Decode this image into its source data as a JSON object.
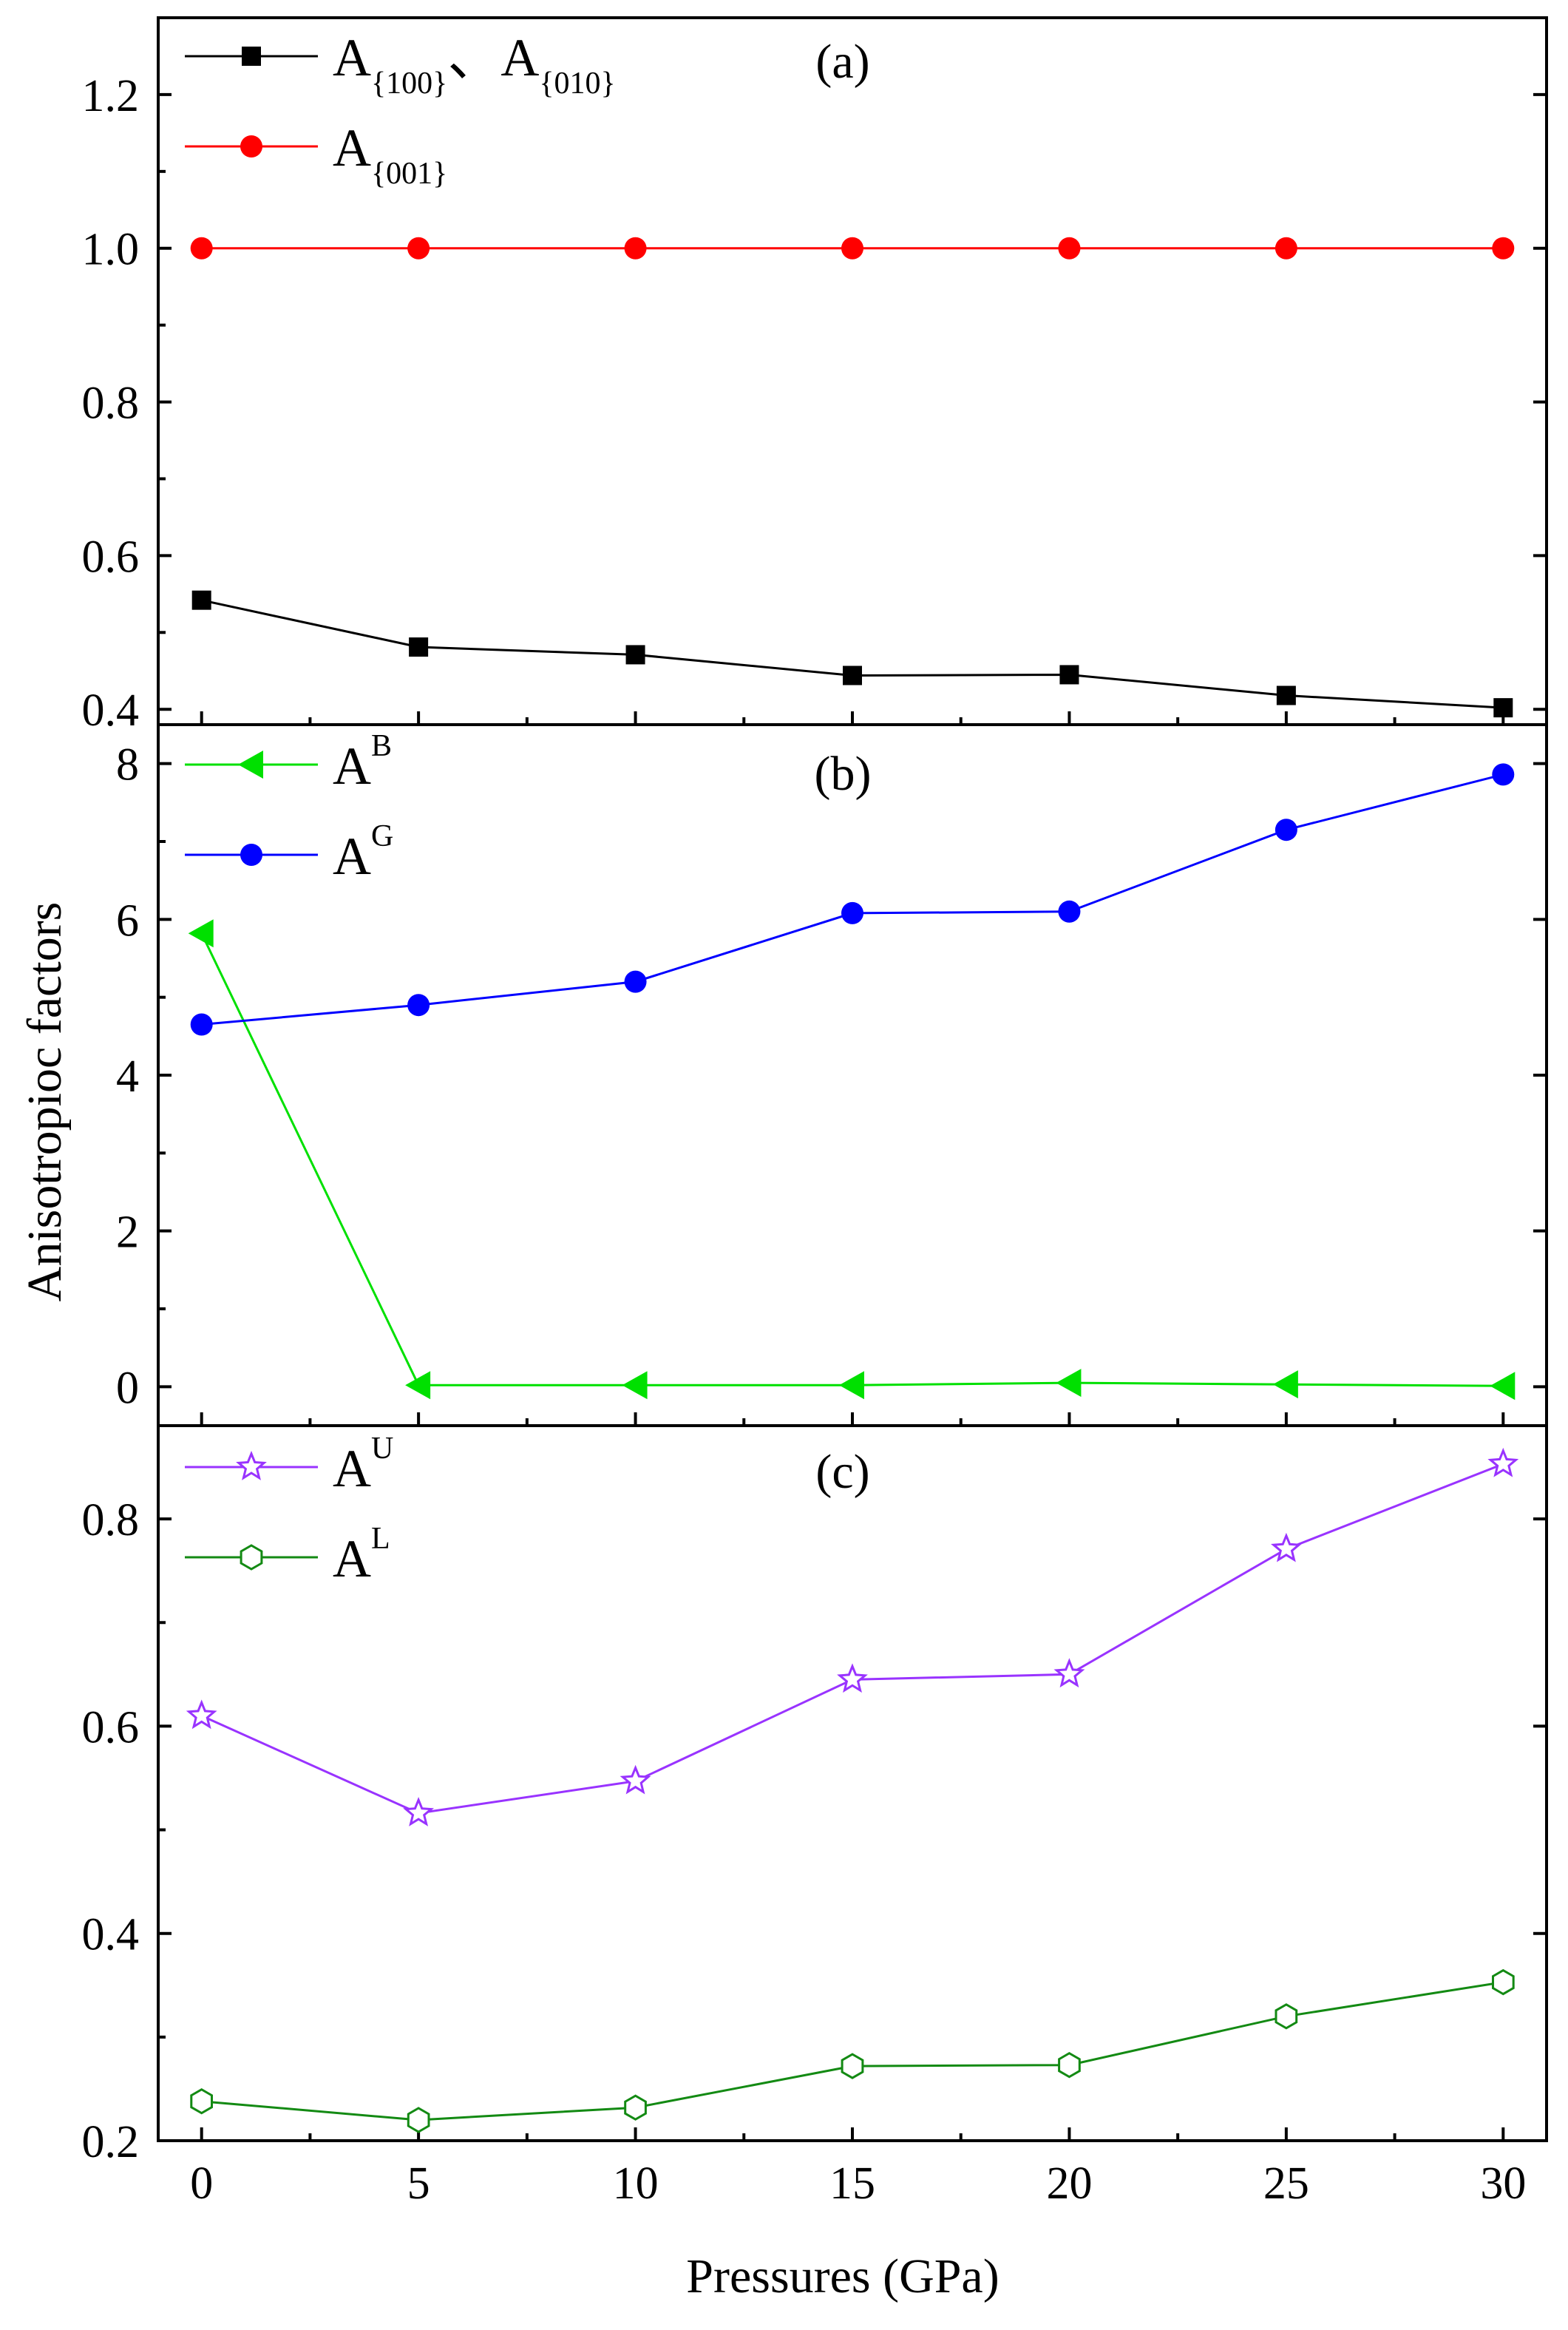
{
  "chart_data": {
    "type": "line",
    "xlabel": "Pressures (GPa)",
    "ylabel": "Anisotropioc factors",
    "x": [
      0,
      5,
      10,
      15,
      20,
      25,
      30
    ],
    "xlim": [
      -1,
      31
    ],
    "xticks": [
      "0",
      "5",
      "10",
      "15",
      "20",
      "25",
      "30"
    ],
    "panels": [
      {
        "label": "(a)",
        "ylim": [
          0.38,
          1.3
        ],
        "yticks": [
          0.4,
          0.6,
          0.8,
          1.0,
          1.2
        ],
        "ytick_labels": [
          "0.4",
          "0.6",
          "0.8",
          "1.0",
          "1.2"
        ],
        "series": [
          {
            "name_main": "A",
            "name_sub": "{100}",
            "name_sep": "、",
            "name_main2": "A",
            "name_sub2": "{010}",
            "color": "#000000",
            "marker": "square",
            "values": [
              0.542,
              0.481,
              0.471,
              0.444,
              0.445,
              0.418,
              0.402
            ]
          },
          {
            "name_main": "A",
            "name_sub": "{001}",
            "color": "#ff0000",
            "marker": "circle",
            "values": [
              1.0,
              1.0,
              1.0,
              1.0,
              1.0,
              1.0,
              1.0
            ]
          }
        ]
      },
      {
        "label": "(b)",
        "ylim": [
          -0.5,
          8.5
        ],
        "yticks": [
          0,
          2,
          4,
          6,
          8
        ],
        "ytick_labels": [
          "0",
          "2",
          "4",
          "6",
          "8"
        ],
        "series": [
          {
            "name_main": "A",
            "name_sup": "B",
            "color": "#00e000",
            "marker": "triangle-left",
            "values": [
              5.82,
              0.02,
              0.02,
              0.02,
              0.05,
              0.03,
              0.01
            ]
          },
          {
            "name_main": "A",
            "name_sup": "G",
            "color": "#0000ff",
            "marker": "circle",
            "values": [
              4.65,
              4.9,
              5.2,
              6.08,
              6.1,
              7.15,
              7.86
            ]
          }
        ]
      },
      {
        "label": "(c)",
        "ylim": [
          0.2,
          0.89
        ],
        "yticks": [
          0.2,
          0.4,
          0.6,
          0.8
        ],
        "ytick_labels": [
          "0.2",
          "0.4",
          "0.6",
          "0.8"
        ],
        "series": [
          {
            "name_main": "A",
            "name_sup": "U",
            "color": "#9933ff",
            "marker": "star-open",
            "values": [
              0.61,
              0.516,
              0.547,
              0.645,
              0.65,
              0.771,
              0.853
            ]
          },
          {
            "name_main": "A",
            "name_sup": "L",
            "color": "#138a13",
            "marker": "hexagon-open",
            "values": [
              0.238,
              0.22,
              0.232,
              0.272,
              0.273,
              0.32,
              0.353
            ]
          }
        ]
      }
    ]
  }
}
